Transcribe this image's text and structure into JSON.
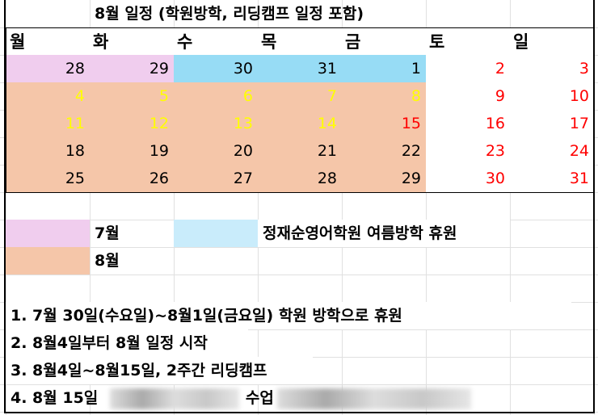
{
  "title": "8월 일정 (학원방학, 리딩캠프 일정 포함)",
  "weekdays": [
    "월",
    "화",
    "수",
    "목",
    "금",
    "토",
    "일"
  ],
  "colors": {
    "july": "#f0cdee",
    "closed": "#97dcf5",
    "august": "#f5c6a9",
    "closed_legend": "#c9ecfb",
    "camp_text": "#ffff00",
    "holiday_text": "#ff0000",
    "normal_text": "#000000"
  },
  "weeks": [
    [
      {
        "d": "28",
        "bg": "july",
        "fg": "normal_text"
      },
      {
        "d": "29",
        "bg": "july",
        "fg": "normal_text"
      },
      {
        "d": "30",
        "bg": "closed",
        "fg": "normal_text"
      },
      {
        "d": "31",
        "bg": "closed",
        "fg": "normal_text"
      },
      {
        "d": "1",
        "bg": "closed",
        "fg": "normal_text"
      },
      {
        "d": "2",
        "bg": "",
        "fg": "holiday_text"
      },
      {
        "d": "3",
        "bg": "",
        "fg": "holiday_text"
      }
    ],
    [
      {
        "d": "4",
        "bg": "august",
        "fg": "camp_text"
      },
      {
        "d": "5",
        "bg": "august",
        "fg": "camp_text"
      },
      {
        "d": "6",
        "bg": "august",
        "fg": "camp_text"
      },
      {
        "d": "7",
        "bg": "august",
        "fg": "camp_text"
      },
      {
        "d": "8",
        "bg": "august",
        "fg": "camp_text"
      },
      {
        "d": "9",
        "bg": "",
        "fg": "holiday_text"
      },
      {
        "d": "10",
        "bg": "",
        "fg": "holiday_text"
      }
    ],
    [
      {
        "d": "11",
        "bg": "august",
        "fg": "camp_text"
      },
      {
        "d": "12",
        "bg": "august",
        "fg": "camp_text"
      },
      {
        "d": "13",
        "bg": "august",
        "fg": "camp_text"
      },
      {
        "d": "14",
        "bg": "august",
        "fg": "camp_text"
      },
      {
        "d": "15",
        "bg": "august",
        "fg": "holiday_text"
      },
      {
        "d": "16",
        "bg": "",
        "fg": "holiday_text"
      },
      {
        "d": "17",
        "bg": "",
        "fg": "holiday_text"
      }
    ],
    [
      {
        "d": "18",
        "bg": "august",
        "fg": "normal_text"
      },
      {
        "d": "19",
        "bg": "august",
        "fg": "normal_text"
      },
      {
        "d": "20",
        "bg": "august",
        "fg": "normal_text"
      },
      {
        "d": "21",
        "bg": "august",
        "fg": "normal_text"
      },
      {
        "d": "22",
        "bg": "august",
        "fg": "normal_text"
      },
      {
        "d": "23",
        "bg": "",
        "fg": "holiday_text"
      },
      {
        "d": "24",
        "bg": "",
        "fg": "holiday_text"
      }
    ],
    [
      {
        "d": "25",
        "bg": "august",
        "fg": "normal_text"
      },
      {
        "d": "26",
        "bg": "august",
        "fg": "normal_text"
      },
      {
        "d": "27",
        "bg": "august",
        "fg": "normal_text"
      },
      {
        "d": "28",
        "bg": "august",
        "fg": "normal_text"
      },
      {
        "d": "29",
        "bg": "august",
        "fg": "normal_text"
      },
      {
        "d": "30",
        "bg": "",
        "fg": "holiday_text"
      },
      {
        "d": "31",
        "bg": "",
        "fg": "holiday_text"
      }
    ]
  ],
  "legend": {
    "july": "7월",
    "august": "8월",
    "closed": "정재순영어학원 여름방학 휴원"
  },
  "notes": [
    "1. 7월 30일(수요일)~8월1일(금요일) 학원 방학으로 휴원",
    "2. 8월4일부터 8월 일정 시작",
    "3. 8월4일~8월15일, 2주간 리딩캠프"
  ],
  "note4": {
    "prefix": "4. 8월 15일",
    "middle": "수업"
  }
}
